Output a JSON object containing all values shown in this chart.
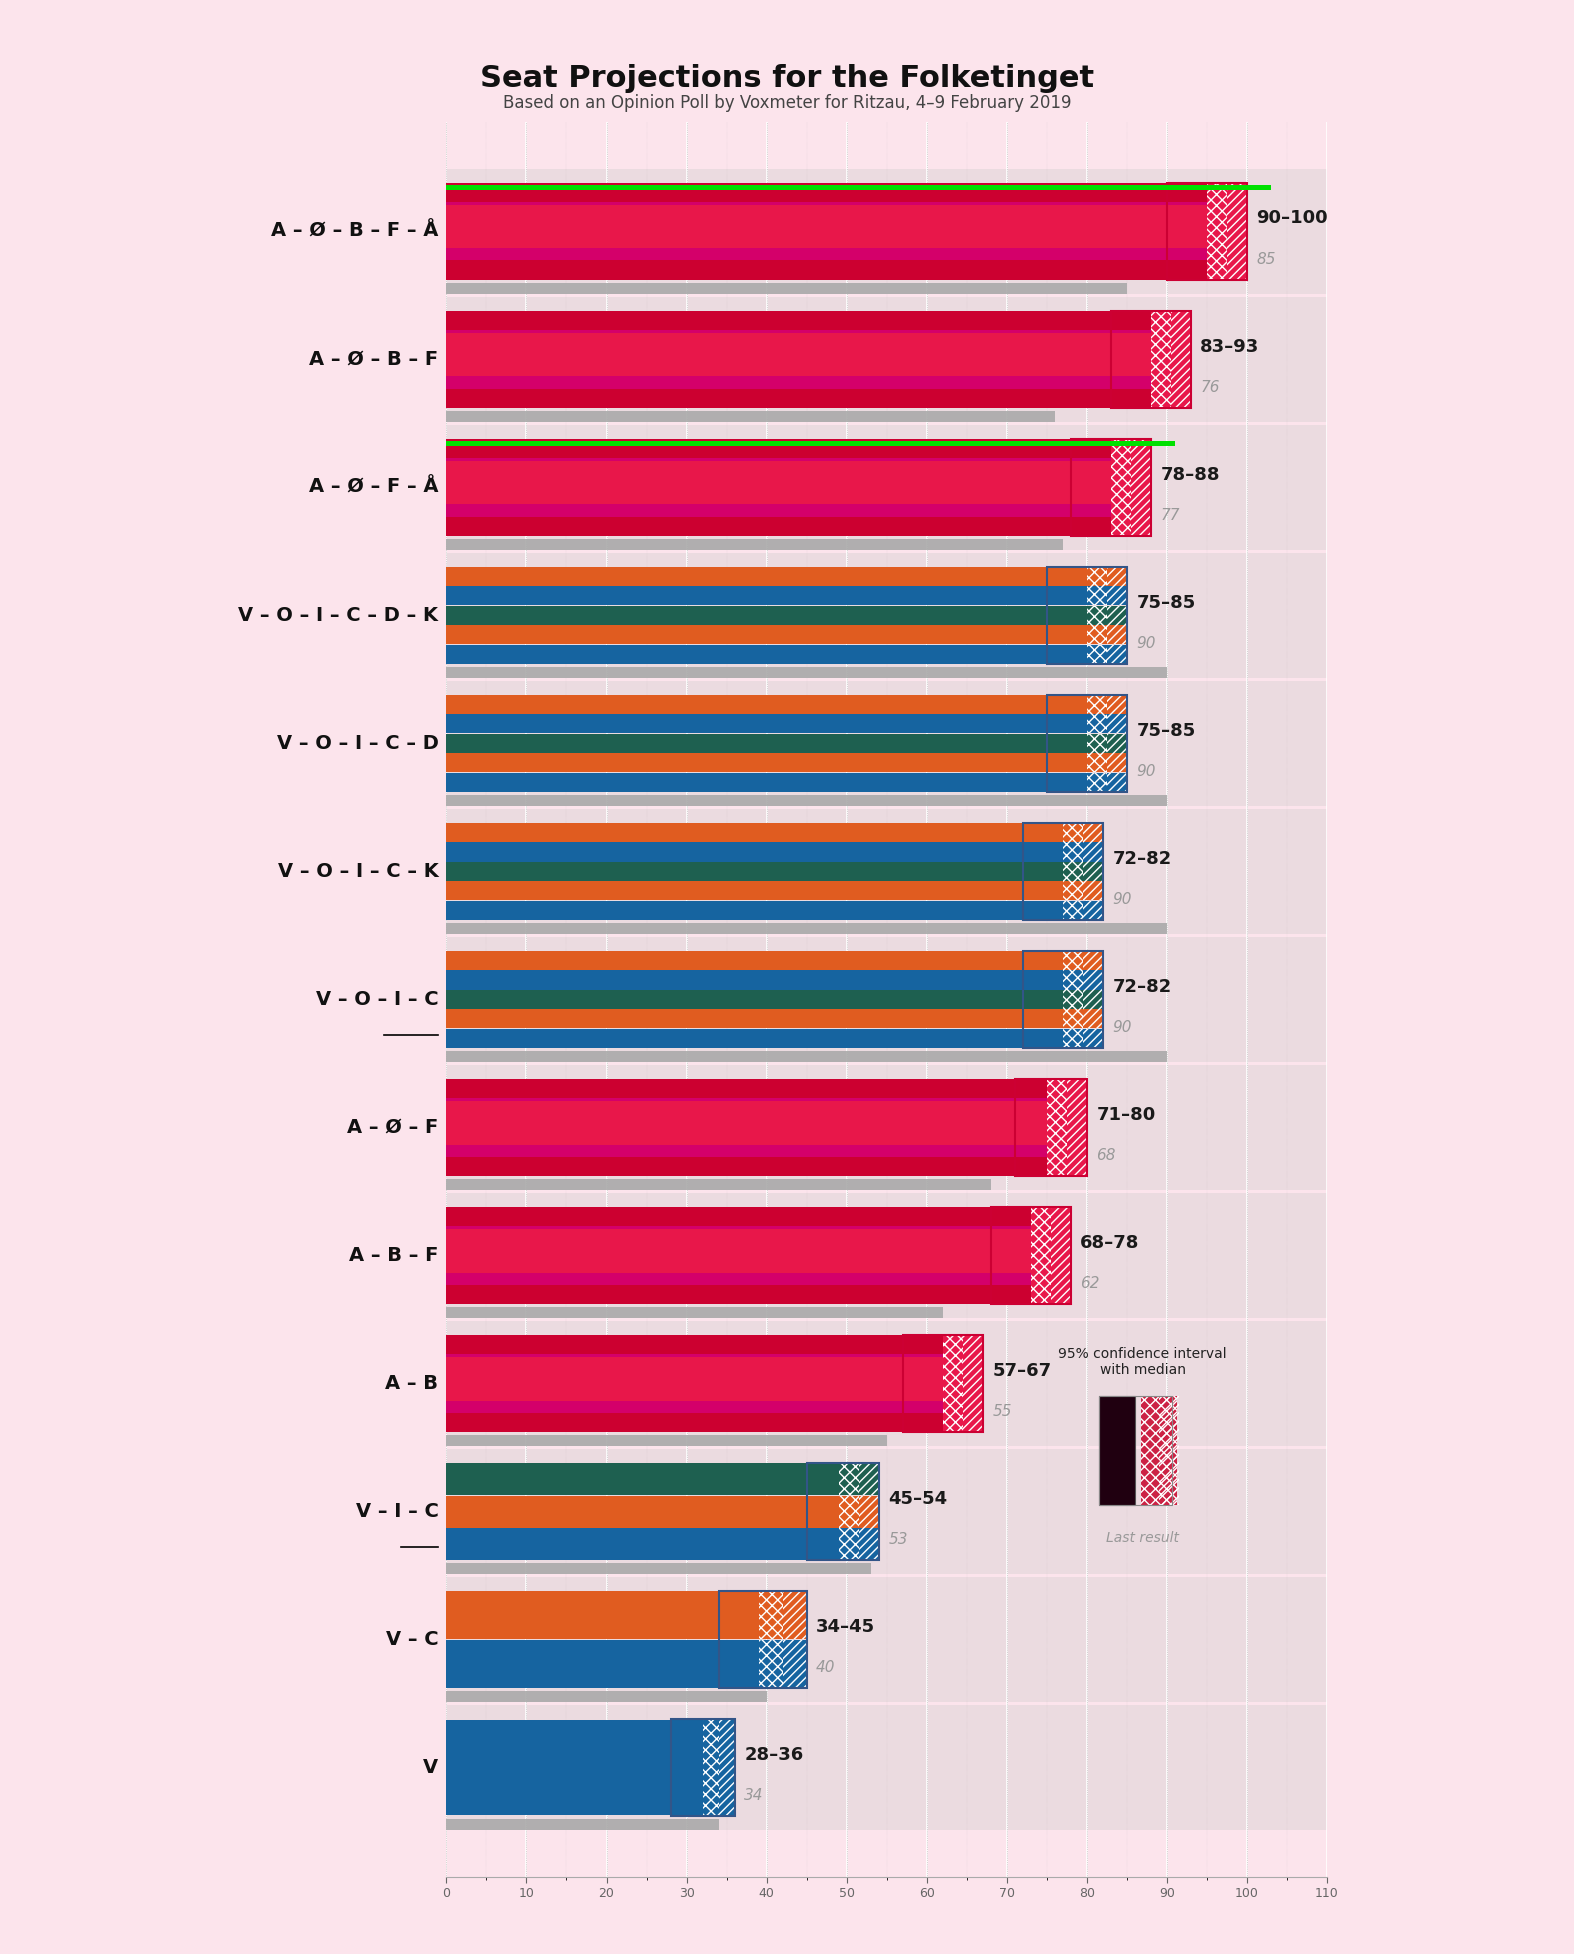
{
  "title": "Seat Projections for the Folketinget",
  "subtitle": "Based on an Opinion Poll by Voxmeter for Ritzau, 4–9 February 2019",
  "bg": "#fce4ec",
  "coalitions": [
    {
      "label": "A – Ø – B – F – Å",
      "low": 90,
      "high": 100,
      "median": 95,
      "last": 85,
      "type": "red",
      "green": true,
      "underline": false
    },
    {
      "label": "A – Ø – B – F",
      "low": 83,
      "high": 93,
      "median": 88,
      "last": 76,
      "type": "red",
      "green": false,
      "underline": false
    },
    {
      "label": "A – Ø – F – Å",
      "low": 78,
      "high": 88,
      "median": 83,
      "last": 77,
      "type": "red",
      "green": true,
      "underline": false
    },
    {
      "label": "V – O – I – C – D – K",
      "low": 75,
      "high": 85,
      "median": 80,
      "last": 90,
      "type": "blue",
      "green": false,
      "underline": false,
      "nstripes": 5
    },
    {
      "label": "V – O – I – C – D",
      "low": 75,
      "high": 85,
      "median": 80,
      "last": 90,
      "type": "blue",
      "green": false,
      "underline": false,
      "nstripes": 5
    },
    {
      "label": "V – O – I – C – K",
      "low": 72,
      "high": 82,
      "median": 77,
      "last": 90,
      "type": "blue",
      "green": false,
      "underline": false,
      "nstripes": 5
    },
    {
      "label": "V – O – I – C",
      "low": 72,
      "high": 82,
      "median": 77,
      "last": 90,
      "type": "blue",
      "green": false,
      "underline": true,
      "nstripes": 5
    },
    {
      "label": "A – Ø – F",
      "low": 71,
      "high": 80,
      "median": 75,
      "last": 68,
      "type": "red",
      "green": false,
      "underline": false
    },
    {
      "label": "A – B – F",
      "low": 68,
      "high": 78,
      "median": 73,
      "last": 62,
      "type": "red",
      "green": false,
      "underline": false
    },
    {
      "label": "A – B",
      "low": 57,
      "high": 67,
      "median": 62,
      "last": 55,
      "type": "red",
      "green": false,
      "underline": false
    },
    {
      "label": "V – I – C",
      "low": 45,
      "high": 54,
      "median": 49,
      "last": 53,
      "type": "blue",
      "green": false,
      "underline": true,
      "nstripes": 3
    },
    {
      "label": "V – C",
      "low": 34,
      "high": 45,
      "median": 39,
      "last": 40,
      "type": "blue",
      "green": false,
      "underline": false,
      "nstripes": 2
    },
    {
      "label": "V",
      "low": 28,
      "high": 36,
      "median": 32,
      "last": 34,
      "type": "blue",
      "green": false,
      "underline": false,
      "nstripes": 1
    }
  ],
  "red_top": "#e8174a",
  "red_mid": "#d4006a",
  "red_bot": "#cc0030",
  "blue": "#1664a0",
  "blue_dark": "#1e5080",
  "teal": "#1e6050",
  "orange": "#e05c20",
  "green_line": "#00e000",
  "gray": "#aaaaaa",
  "gray_bg": "#cccccc",
  "xmax": 110,
  "BH": 0.38,
  "LH": 0.1
}
